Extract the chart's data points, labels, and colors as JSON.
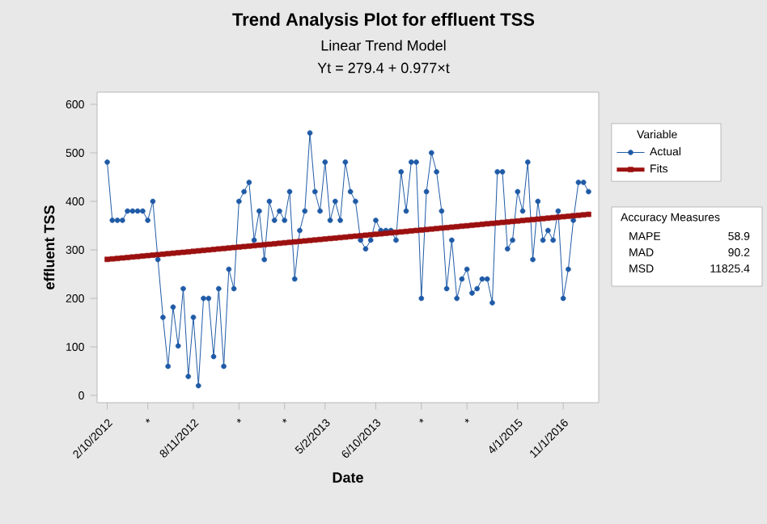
{
  "chart_data": {
    "type": "line",
    "title": "Trend Analysis Plot for effluent TSS",
    "subtitle": "Linear Trend Model",
    "xlabel": "Date",
    "ylabel": "effluent TSS",
    "legend_title": "Variable",
    "annotations": [
      "Yt = 279.4 + 0.977×t",
      "Accuracy Measures",
      "MAPE",
      "58.9",
      "MAD",
      "90.2",
      "MSD",
      "11825.4"
    ],
    "categories": [
      "2/10/2012",
      null,
      null,
      null,
      null,
      null,
      null,
      null,
      "*",
      null,
      null,
      null,
      null,
      null,
      null,
      null,
      null,
      "8/11/2012",
      null,
      null,
      null,
      null,
      null,
      null,
      null,
      null,
      "*",
      null,
      null,
      null,
      null,
      null,
      null,
      null,
      null,
      "*",
      null,
      null,
      null,
      null,
      null,
      null,
      null,
      "5/2/2013",
      null,
      null,
      null,
      null,
      null,
      null,
      null,
      null,
      null,
      "6/10/2013",
      null,
      null,
      null,
      null,
      null,
      null,
      null,
      null,
      "*",
      null,
      null,
      null,
      null,
      null,
      null,
      null,
      null,
      "*",
      null,
      null,
      null,
      null,
      null,
      null,
      null,
      null,
      null,
      "4/1/2015",
      null,
      null,
      null,
      null,
      null,
      null,
      null,
      null,
      "11/1/2016",
      null,
      null,
      null,
      null,
      null
    ],
    "series": [
      {
        "name": "Actual",
        "color": "#1f5aa6",
        "marker": "circle",
        "values": [
          481,
          361,
          361,
          361,
          380,
          380,
          380,
          380,
          361,
          400,
          280,
          161,
          60,
          182,
          102,
          220,
          39,
          161,
          20,
          200,
          200,
          80,
          220,
          60,
          260,
          220,
          400,
          420,
          439,
          320,
          380,
          280,
          400,
          361,
          380,
          361,
          420,
          240,
          340,
          380,
          541,
          420,
          380,
          481,
          361,
          400,
          361,
          481,
          420,
          400,
          320,
          302,
          320,
          361,
          340,
          340,
          340,
          320,
          461,
          380,
          481,
          481,
          200,
          420,
          500,
          461,
          380,
          220,
          320,
          200,
          240,
          260,
          211,
          220,
          240,
          240,
          191,
          461,
          461,
          302,
          320,
          420,
          380,
          481,
          280,
          400,
          320,
          340,
          320,
          380,
          200,
          260,
          361,
          439,
          439,
          420
        ]
      },
      {
        "name": "Fits",
        "color": "#9c1010",
        "marker": "square",
        "values": [
          280.4,
          281.4,
          282.3,
          283.3,
          284.3,
          285.3,
          286.2,
          287.2,
          288.2,
          289.2,
          290.1,
          291.1,
          292.1,
          293.1,
          294.1,
          295.0,
          296.0,
          297.0,
          298.0,
          298.9,
          299.9,
          300.9,
          301.9,
          302.8,
          303.8,
          304.8,
          305.8,
          306.8,
          307.7,
          308.7,
          309.7,
          310.7,
          311.6,
          312.6,
          313.6,
          314.6,
          315.5,
          316.5,
          317.5,
          318.5,
          319.5,
          320.4,
          321.4,
          322.4,
          323.4,
          324.3,
          325.3,
          326.3,
          327.3,
          328.3,
          329.2,
          330.2,
          331.2,
          332.2,
          333.1,
          334.1,
          335.1,
          336.1,
          337.0,
          338.0,
          339.0,
          340.0,
          340.9,
          341.9,
          342.9,
          343.9,
          344.9,
          345.8,
          346.8,
          347.8,
          348.8,
          349.7,
          350.7,
          351.7,
          352.7,
          353.7,
          354.6,
          355.6,
          356.6,
          357.6,
          358.5,
          359.5,
          360.5,
          361.5,
          362.4,
          363.4,
          364.4,
          365.4,
          366.4,
          367.3,
          368.3,
          369.3,
          370.3,
          371.2,
          372.2,
          373.2
        ]
      }
    ],
    "ylim": [
      -15,
      625
    ],
    "yticks": [
      0,
      100,
      200,
      300,
      400,
      500,
      600
    ],
    "legend": "right",
    "line_style": "solid"
  }
}
